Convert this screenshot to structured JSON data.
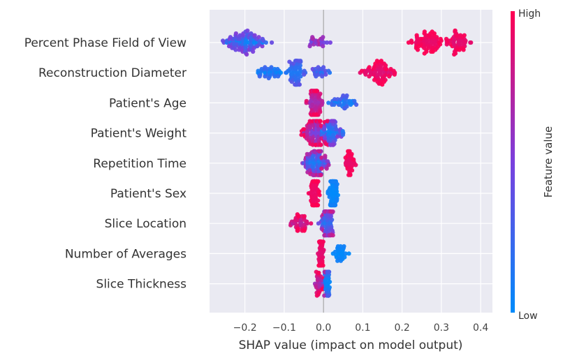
{
  "chart_data": {
    "type": "scatter",
    "subtype": "shap-beeswarm",
    "xlabel": "SHAP value (impact on model output)",
    "xlim": [
      -0.29,
      0.43
    ],
    "x_ticks": [
      -0.2,
      -0.1,
      0.0,
      0.1,
      0.2,
      0.3,
      0.4
    ],
    "x_tick_labels": [
      "−0.2",
      "−0.1",
      "0.0",
      "0.1",
      "0.2",
      "0.3",
      "0.4"
    ],
    "grid": true,
    "colorbar": {
      "title": "Feature value",
      "high_label": "High",
      "low_label": "Low",
      "low_color": "#008bfb",
      "high_color": "#ff0052"
    },
    "colors": {
      "background": "#eaeaf2",
      "grid": "#ffffff",
      "zero_line": "#999999"
    },
    "features": [
      {
        "name": "Percent Phase Field of View",
        "clusters": [
          {
            "center": -0.2,
            "spread": 0.055,
            "n": 110,
            "value_lo": 0.0,
            "value_hi": 0.55
          },
          {
            "center": -0.02,
            "spread": 0.03,
            "n": 25,
            "value_lo": 0.4,
            "value_hi": 0.75
          },
          {
            "center": 0.27,
            "spread": 0.045,
            "n": 80,
            "value_lo": 0.9,
            "value_hi": 1.0
          },
          {
            "center": 0.345,
            "spread": 0.03,
            "n": 55,
            "value_lo": 0.85,
            "value_hi": 1.0
          }
        ]
      },
      {
        "name": "Reconstruction Diameter",
        "clusters": [
          {
            "center": -0.14,
            "spread": 0.04,
            "n": 40,
            "value_lo": 0.0,
            "value_hi": 0.25
          },
          {
            "center": -0.07,
            "spread": 0.02,
            "n": 70,
            "value_lo": 0.1,
            "value_hi": 0.4
          },
          {
            "center": -0.01,
            "spread": 0.02,
            "n": 25,
            "value_lo": 0.05,
            "value_hi": 0.45
          },
          {
            "center": 0.14,
            "spread": 0.04,
            "n": 80,
            "value_lo": 0.85,
            "value_hi": 1.0
          }
        ]
      },
      {
        "name": "Patient's Age",
        "clusters": [
          {
            "center": -0.02,
            "spread": 0.015,
            "n": 85,
            "value_lo": 0.6,
            "value_hi": 1.0
          },
          {
            "center": 0.05,
            "spread": 0.035,
            "n": 40,
            "value_lo": 0.0,
            "value_hi": 0.35
          }
        ]
      },
      {
        "name": "Patient's Weight",
        "clusters": [
          {
            "center": -0.02,
            "spread": 0.03,
            "n": 110,
            "value_lo": 0.45,
            "value_hi": 1.0
          },
          {
            "center": 0.02,
            "spread": 0.025,
            "n": 80,
            "value_lo": 0.0,
            "value_hi": 0.55
          }
        ]
      },
      {
        "name": "Repetition Time",
        "clusters": [
          {
            "center": -0.02,
            "spread": 0.025,
            "n": 110,
            "value_lo": 0.05,
            "value_hi": 0.85
          },
          {
            "center": 0.065,
            "spread": 0.015,
            "n": 40,
            "value_lo": 0.9,
            "value_hi": 1.0
          }
        ]
      },
      {
        "name": "Patient's Sex",
        "clusters": [
          {
            "center": -0.022,
            "spread": 0.01,
            "n": 90,
            "value_lo": 0.92,
            "value_hi": 1.0
          },
          {
            "center": 0.025,
            "spread": 0.01,
            "n": 90,
            "value_lo": 0.0,
            "value_hi": 0.08
          }
        ]
      },
      {
        "name": "Slice Location",
        "clusters": [
          {
            "center": -0.06,
            "spread": 0.025,
            "n": 45,
            "value_lo": 0.7,
            "value_hi": 1.0
          },
          {
            "center": 0.01,
            "spread": 0.015,
            "n": 80,
            "value_lo": 0.1,
            "value_hi": 0.8
          }
        ]
      },
      {
        "name": "Number of Averages",
        "clusters": [
          {
            "center": -0.007,
            "spread": 0.006,
            "n": 55,
            "value_lo": 0.88,
            "value_hi": 1.0
          },
          {
            "center": 0.045,
            "spread": 0.015,
            "n": 30,
            "value_lo": 0.0,
            "value_hi": 0.08
          }
        ]
      },
      {
        "name": "Slice Thickness",
        "clusters": [
          {
            "center": -0.01,
            "spread": 0.015,
            "n": 35,
            "value_lo": 0.6,
            "value_hi": 1.0
          },
          {
            "center": 0.01,
            "spread": 0.008,
            "n": 40,
            "value_lo": 0.0,
            "value_hi": 0.35
          }
        ]
      }
    ]
  }
}
